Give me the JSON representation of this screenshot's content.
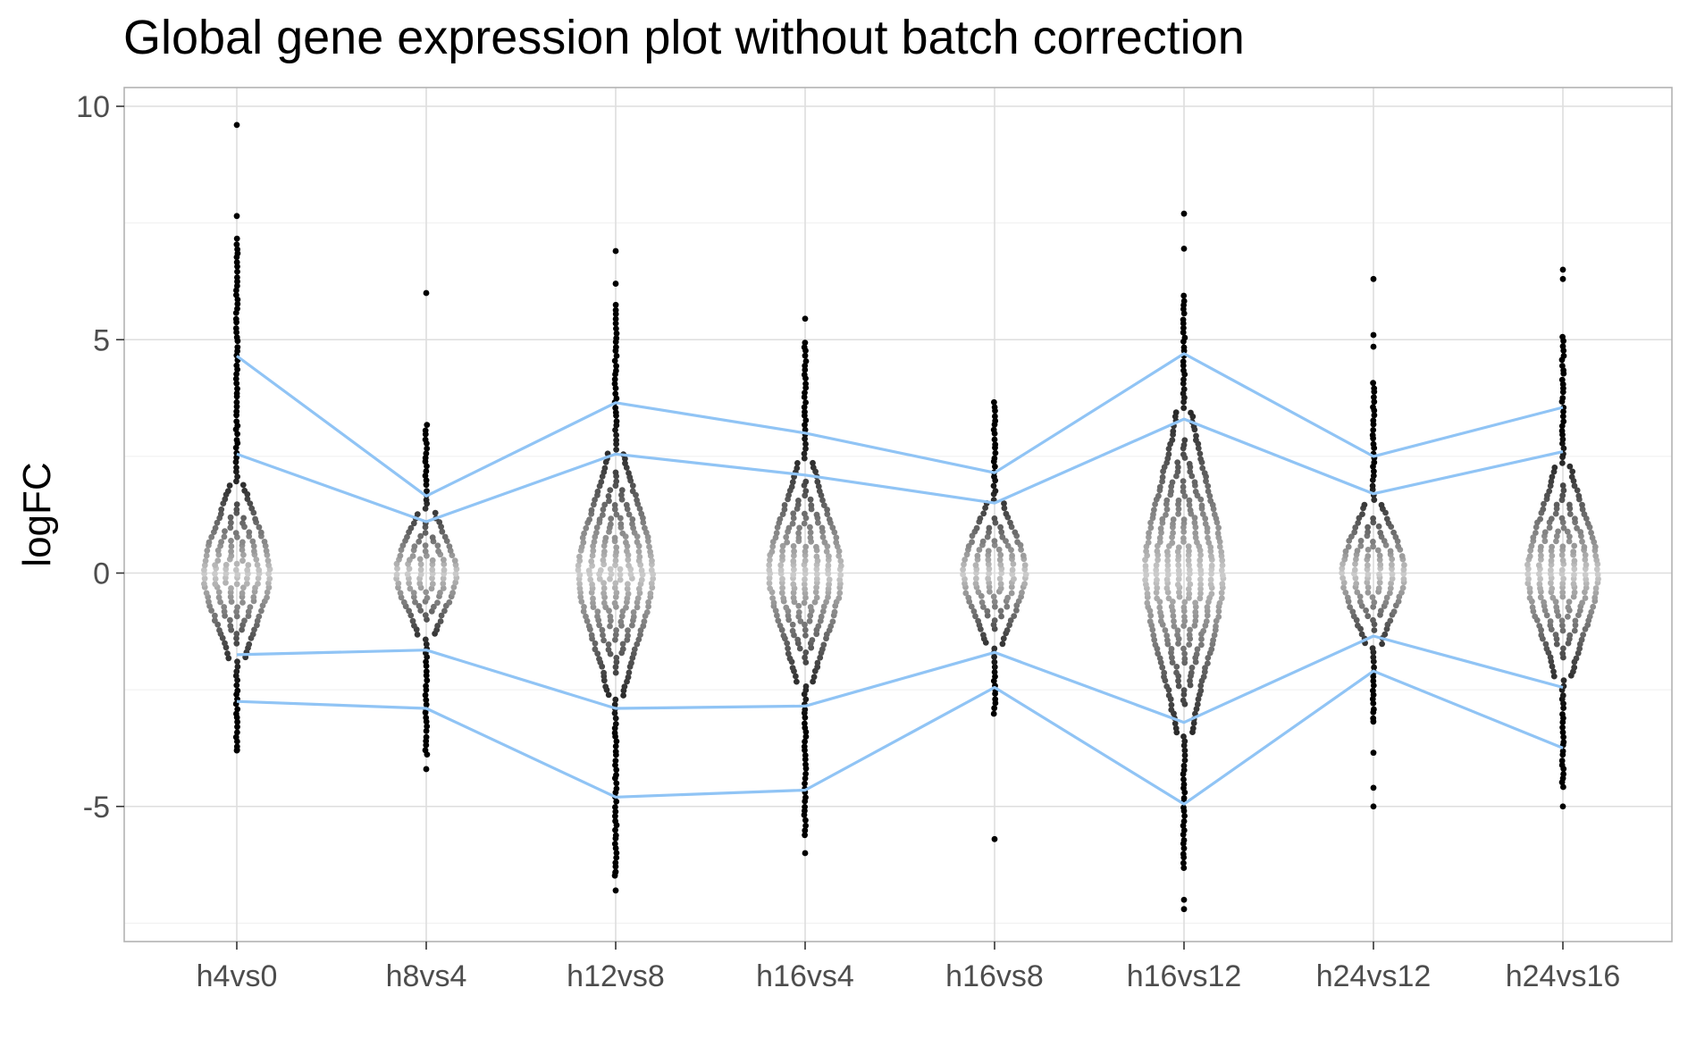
{
  "chart_data": {
    "type": "scatter",
    "title": "Global gene expression plot without batch correction",
    "xlabel": "",
    "ylabel": "logFC",
    "ylim": [
      -7.8,
      10.4
    ],
    "yticks": [
      -5,
      0,
      5,
      10
    ],
    "ytick_labels": [
      "-5",
      "0",
      "5",
      "10"
    ],
    "categories": [
      "h4vs0",
      "h8vs4",
      "h12vs8",
      "h16vs4",
      "h16vs8",
      "h16vs12",
      "h24vs12",
      "h24vs16"
    ],
    "distributions": [
      {
        "category": "h4vs0",
        "spread": 1.0,
        "min": -3.8,
        "max": 7.2,
        "outliers": [
          9.6,
          7.65,
          -3.8
        ]
      },
      {
        "category": "h8vs4",
        "spread": 0.75,
        "min": -3.9,
        "max": 3.2,
        "outliers": [
          6.0,
          -4.2
        ]
      },
      {
        "category": "h12vs8",
        "spread": 1.35,
        "min": -6.5,
        "max": 5.8,
        "outliers": [
          6.9,
          6.2,
          -6.4,
          -6.8
        ]
      },
      {
        "category": "h16vs4",
        "spread": 1.25,
        "min": -5.6,
        "max": 5.0,
        "outliers": [
          5.45,
          -6.0
        ]
      },
      {
        "category": "h16vs8",
        "spread": 0.85,
        "min": -3.0,
        "max": 3.7,
        "outliers": [
          -5.7
        ]
      },
      {
        "category": "h16vs12",
        "spread": 1.75,
        "min": -6.3,
        "max": 6.0,
        "outliers": [
          7.7,
          6.95,
          -7.0,
          -7.2
        ]
      },
      {
        "category": "h24vs12",
        "spread": 0.85,
        "min": -3.2,
        "max": 4.1,
        "outliers": [
          6.3,
          5.1,
          4.85,
          -3.85,
          -4.6,
          -5.0
        ]
      },
      {
        "category": "h24vs16",
        "spread": 1.2,
        "min": -4.6,
        "max": 5.1,
        "outliers": [
          6.5,
          6.3,
          -5.0
        ]
      }
    ],
    "series": [
      {
        "values": [
          4.65,
          1.65,
          3.65,
          3.0,
          2.15,
          4.7,
          2.5,
          3.55
        ]
      },
      {
        "values": [
          2.55,
          1.1,
          2.55,
          2.1,
          1.5,
          3.3,
          1.7,
          2.6
        ]
      },
      {
        "values": [
          -1.75,
          -1.65,
          -2.9,
          -2.85,
          -1.7,
          -3.2,
          -1.35,
          -2.45
        ]
      },
      {
        "values": [
          -2.75,
          -2.9,
          -4.8,
          -4.65,
          -2.45,
          -4.95,
          -2.1,
          -3.75
        ]
      }
    ],
    "line_color": "#90c4f5",
    "point_color_center": "#cfcfcf",
    "point_color_tail": "#000000",
    "grid": true,
    "legend": "none"
  }
}
